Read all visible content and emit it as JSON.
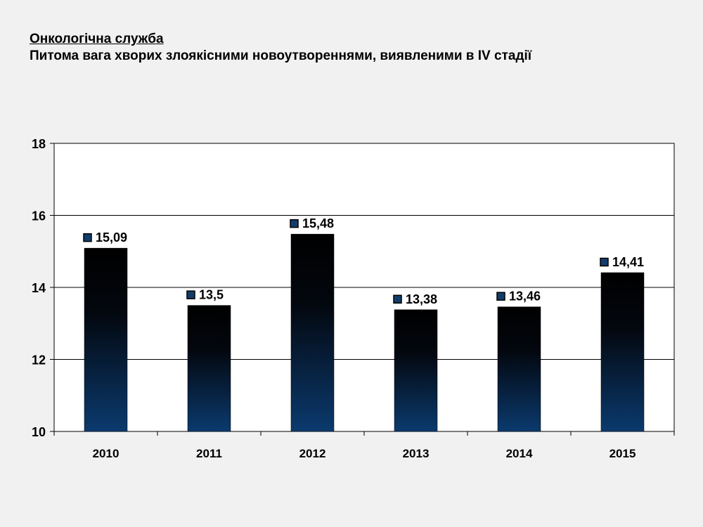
{
  "header": {
    "title": "Онкологічна служба",
    "subtitle": "Питома вага хворих злоякісними новоутвореннями, виявленими в IV стадії"
  },
  "colors": {
    "bar_top": "#000000",
    "bar_bottom": "#0b3a6e",
    "marker": "#123d6b",
    "plot_background": "#ffffff",
    "page_background": "#f1f1f1"
  },
  "chart_data": {
    "type": "bar",
    "categories": [
      "2010",
      "2011",
      "2012",
      "2013",
      "2014",
      "2015"
    ],
    "values": [
      15.09,
      13.5,
      15.48,
      13.38,
      13.46,
      14.41
    ],
    "value_labels": [
      "15,09",
      "13,5",
      "15,48",
      "13,38",
      "13,46",
      "14,41"
    ],
    "ylim": [
      10,
      18
    ],
    "yticks": [
      "10",
      "12",
      "14",
      "16",
      "18"
    ],
    "ytick_values": [
      10,
      12,
      14,
      16,
      18
    ],
    "grid": true,
    "legend": "none"
  }
}
